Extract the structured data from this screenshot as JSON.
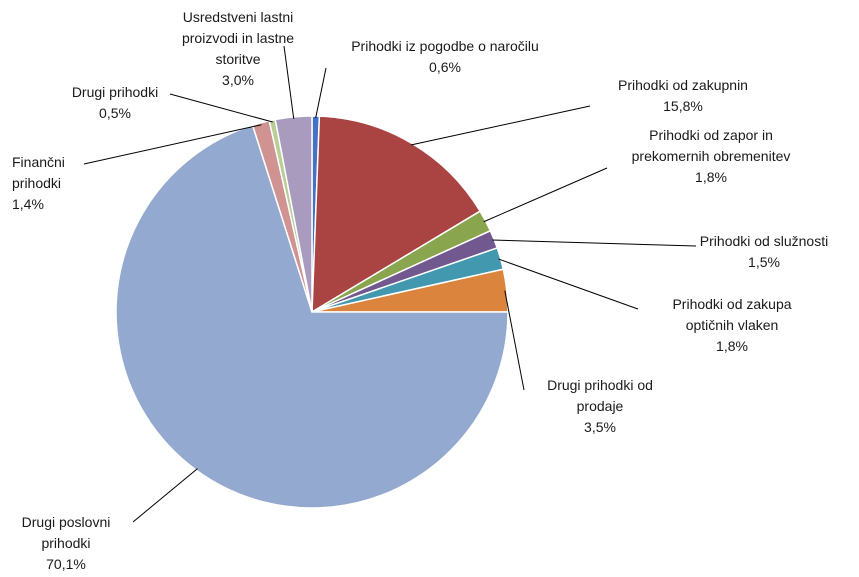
{
  "chart_data": {
    "type": "pie",
    "title": "",
    "slices": [
      {
        "label": "Prihodki iz pogodbe o naročilu",
        "lines": [
          "Prihodki iz pogodbe o naročilu"
        ],
        "value_label": "0,6%",
        "value": 0.6,
        "color": "#4472C4"
      },
      {
        "label": "Prihodki od zakupnin",
        "lines": [
          "Prihodki od zakupnin"
        ],
        "value_label": "15,8%",
        "value": 15.8,
        "color": "#AA4442"
      },
      {
        "label": "Prihodki od zapor in prekomernih obremenitev",
        "lines": [
          "Prihodki od zapor in",
          "prekomernih obremenitev"
        ],
        "value_label": "1,8%",
        "value": 1.8,
        "color": "#89A54E"
      },
      {
        "label": "Prihodki od služnosti",
        "lines": [
          "Prihodki od služnosti"
        ],
        "value_label": "1,5%",
        "value": 1.5,
        "color": "#71588F"
      },
      {
        "label": "Prihodki od zakupa optičnih vlaken",
        "lines": [
          "Prihodki od zakupa",
          "optičnih vlaken"
        ],
        "value_label": "1,8%",
        "value": 1.8,
        "color": "#4198AF"
      },
      {
        "label": "Drugi prihodki od prodaje",
        "lines": [
          "Drugi prihodki od",
          "prodaje"
        ],
        "value_label": "3,5%",
        "value": 3.5,
        "color": "#DB843D"
      },
      {
        "label": "Drugi poslovni prihodki",
        "lines": [
          "Drugi poslovni",
          "prihodki"
        ],
        "value_label": "70,1%",
        "value": 70.1,
        "color": "#93A9CF"
      },
      {
        "label": "Finančni prihodki",
        "lines": [
          "Finančni",
          "prihodki"
        ],
        "value_label": "1,4%",
        "value": 1.4,
        "color": "#D19392"
      },
      {
        "label": "Drugi prihodki",
        "lines": [
          "Drugi prihodki"
        ],
        "value_label": "0,5%",
        "value": 0.5,
        "color": "#B9CD96"
      },
      {
        "label": "Usredstveni lastni proizvodi in lastne storitve",
        "lines": [
          "Usredstveni lastni",
          "proizvodi in lastne",
          "storitve"
        ],
        "value_label": "3,0%",
        "value": 3.0,
        "color": "#A99BBD"
      }
    ]
  }
}
